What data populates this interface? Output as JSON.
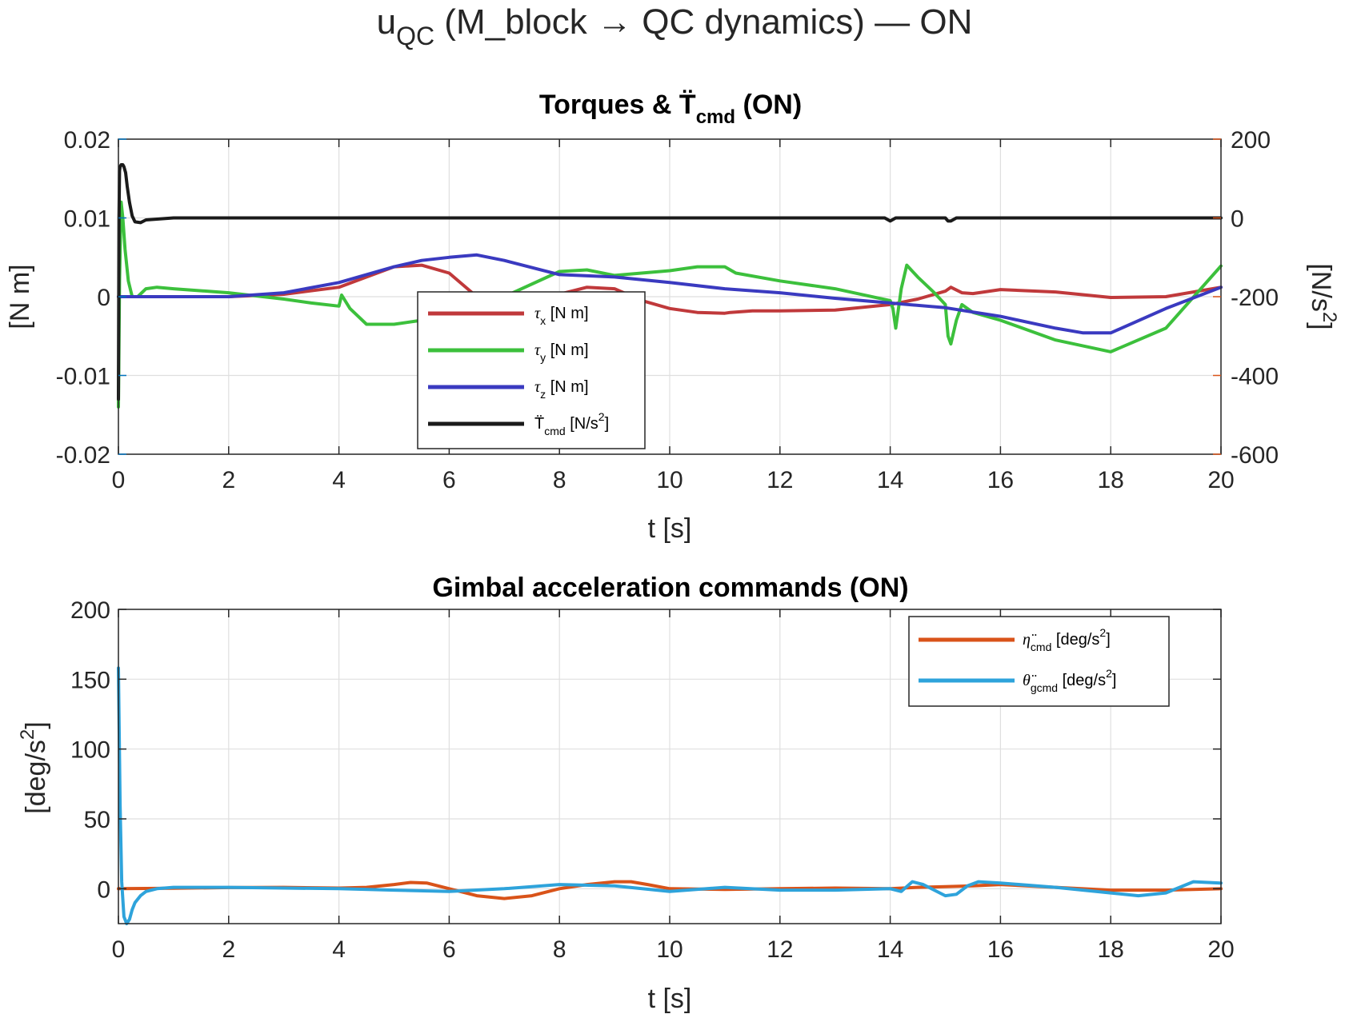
{
  "figure_title": {
    "main": "u",
    "sub": "QC",
    "rest": " (M_block → QC dynamics) — ON"
  },
  "colors": {
    "left_axis": "#0072BD",
    "right_axis": "#D95319",
    "tau_x": "#C0393B",
    "tau_y": "#3CC03C",
    "tau_z": "#3A3AC0",
    "T_cmd": "#1A1A1A",
    "eta": "#D95319",
    "theta": "#2EA3DB"
  },
  "chart_data": [
    {
      "type": "line",
      "title_main": "Torques & T̈",
      "title_sub": "cmd",
      "title_rest": " (ON)",
      "xlabel": "t [s]",
      "ylabel_left": "[N m]",
      "ylabel_right_main": "[N/s",
      "ylabel_right_sup": "2",
      "ylabel_right_end": "]",
      "xlim": [
        0,
        20
      ],
      "ylim_left": [
        -0.02,
        0.02
      ],
      "ylim_right": [
        -600,
        200
      ],
      "xticks": [
        "0",
        "2",
        "4",
        "6",
        "8",
        "10",
        "12",
        "14",
        "16",
        "18",
        "20"
      ],
      "yticks_left": [
        "-0.02",
        "-0.01",
        "0",
        "0.01",
        "0.02"
      ],
      "yticks_right": [
        "-600",
        "-400",
        "-200",
        "0",
        "200"
      ],
      "grid": true,
      "legend_position": "lower-left",
      "legend": [
        {
          "sym": "τ",
          "sub": "x",
          "rest": " [N m]"
        },
        {
          "sym": "τ",
          "sub": "y",
          "rest": " [N m]"
        },
        {
          "sym": "τ",
          "sub": "z",
          "rest": " [N m]"
        },
        {
          "sym": "T̈",
          "sub": "cmd",
          "rest": " [N/s",
          "sup": "2",
          "end": "]"
        }
      ],
      "series": [
        {
          "key": "tau_x",
          "axis": "left",
          "x": [
            0,
            0.5,
            1,
            2,
            3,
            4,
            4.5,
            5,
            5.5,
            6,
            6.5,
            7,
            7.5,
            8,
            8.5,
            9,
            9.5,
            10,
            10.5,
            11,
            11.1,
            11.5,
            12,
            13,
            14,
            14.5,
            15,
            15.1,
            15.3,
            15.5,
            16,
            17,
            18,
            19,
            20
          ],
          "y": [
            0,
            0,
            0,
            0,
            0.0003,
            0.0012,
            0.0025,
            0.0038,
            0.004,
            0.003,
            0,
            -0.0016,
            -0.0015,
            0.0003,
            0.0012,
            0.001,
            -0.0005,
            -0.0015,
            -0.002,
            -0.0021,
            -0.002,
            -0.0018,
            -0.0018,
            -0.0017,
            -0.001,
            -0.0003,
            0.0007,
            0.0012,
            0.0005,
            0.0004,
            0.0009,
            0.0006,
            -0.0001,
            0,
            0.0012
          ]
        },
        {
          "key": "tau_y",
          "axis": "left",
          "x": [
            0,
            0.02,
            0.05,
            0.08,
            0.12,
            0.18,
            0.25,
            0.35,
            0.5,
            0.7,
            1,
            2,
            3,
            3.5,
            4,
            4.05,
            4.2,
            4.5,
            5,
            5.5,
            6,
            7,
            8,
            8.5,
            9,
            10,
            10.5,
            11,
            11.2,
            12,
            13,
            14,
            14.05,
            14.1,
            14.2,
            14.3,
            14.5,
            14.8,
            15,
            15.05,
            15.1,
            15.2,
            15.3,
            15.5,
            16,
            17,
            18,
            19,
            20
          ],
          "y": [
            -0.014,
            0.002,
            0.012,
            0.01,
            0.006,
            0.002,
            0,
            0,
            0.001,
            0.0012,
            0.001,
            0.0005,
            -0.0003,
            -0.0008,
            -0.0012,
            0.0002,
            -0.0015,
            -0.0035,
            -0.0035,
            -0.003,
            -0.0025,
            0,
            0.0032,
            0.0034,
            0.0027,
            0.0033,
            0.0038,
            0.0038,
            0.003,
            0.002,
            0.001,
            -0.0005,
            -0.0015,
            -0.004,
            0.001,
            0.004,
            0.0025,
            0.0005,
            -0.001,
            -0.005,
            -0.006,
            -0.003,
            -0.001,
            -0.002,
            -0.003,
            -0.0055,
            -0.007,
            -0.004,
            0.0039
          ]
        },
        {
          "key": "tau_z",
          "axis": "left",
          "x": [
            0,
            0.5,
            1,
            2,
            3,
            4,
            4.5,
            5,
            5.5,
            6,
            6.5,
            7,
            8,
            9,
            10,
            11,
            12,
            13,
            14,
            15,
            16,
            17,
            17.5,
            18,
            19,
            20
          ],
          "y": [
            0,
            0,
            0,
            0,
            0.0005,
            0.0018,
            0.0028,
            0.0038,
            0.0046,
            0.005,
            0.0053,
            0.0046,
            0.0028,
            0.0025,
            0.0018,
            0.001,
            0.0005,
            -0.0002,
            -0.0008,
            -0.0014,
            -0.0025,
            -0.004,
            -0.0046,
            -0.0046,
            -0.0015,
            0.0012
          ]
        },
        {
          "key": "T_cmd",
          "axis": "right",
          "x": [
            0,
            0.01,
            0.02,
            0.03,
            0.05,
            0.08,
            0.1,
            0.13,
            0.16,
            0.2,
            0.25,
            0.3,
            0.4,
            0.5,
            1,
            2,
            4,
            6,
            8,
            10,
            12,
            13.9,
            14,
            14.1,
            15,
            15.05,
            15.1,
            15.2,
            16,
            18,
            20
          ],
          "y": [
            -460,
            0,
            120,
            130,
            135,
            135,
            130,
            115,
            80,
            40,
            5,
            -10,
            -12,
            -5,
            0,
            0,
            0,
            0,
            0,
            0,
            0,
            0,
            -8,
            0,
            0,
            -8,
            -8,
            0,
            0,
            0,
            0
          ]
        }
      ]
    },
    {
      "type": "line",
      "title": "Gimbal acceleration commands (ON)",
      "xlabel": "t [s]",
      "ylabel_main": "[deg/s",
      "ylabel_sup": "2",
      "ylabel_end": "]",
      "xlim": [
        0,
        20
      ],
      "ylim": [
        -25,
        200
      ],
      "xticks": [
        "0",
        "2",
        "4",
        "6",
        "8",
        "10",
        "12",
        "14",
        "16",
        "18",
        "20"
      ],
      "yticks": [
        "0",
        "50",
        "100",
        "150",
        "200"
      ],
      "grid": true,
      "legend_position": "top-right",
      "legend": [
        {
          "sym": "η̈",
          "sub": "cmd",
          "rest": " [deg/s",
          "sup": "2",
          "end": "]"
        },
        {
          "sym": "θ̈",
          "sub": "gcmd",
          "rest": " [deg/s",
          "sup": "2",
          "end": "]"
        }
      ],
      "series": [
        {
          "key": "eta",
          "x": [
            0,
            1,
            2,
            3,
            4,
            4.5,
            5,
            5.3,
            5.6,
            6,
            6.5,
            7,
            7.5,
            8,
            8.5,
            9,
            9.3,
            9.6,
            10,
            11,
            12,
            13,
            14,
            14.5,
            15,
            15.5,
            16,
            17,
            18,
            19,
            20
          ],
          "y": [
            0,
            0.3,
            0.8,
            1,
            0.5,
            1,
            3,
            4.5,
            4,
            0,
            -5,
            -7,
            -5,
            0,
            3,
            5,
            5,
            3,
            0,
            -0.5,
            0,
            0.5,
            0,
            1,
            1.5,
            2,
            3,
            1,
            -1,
            -1,
            0
          ]
        },
        {
          "key": "theta",
          "x": [
            0,
            0.03,
            0.06,
            0.1,
            0.15,
            0.2,
            0.25,
            0.3,
            0.4,
            0.5,
            0.7,
            1,
            2,
            3,
            4,
            5,
            6,
            7,
            8,
            9,
            10,
            11,
            12,
            13,
            14,
            14.2,
            14.4,
            14.6,
            15,
            15.2,
            15.4,
            15.6,
            16,
            17,
            18,
            18.5,
            19,
            19.5,
            20
          ],
          "y": [
            158,
            60,
            5,
            -20,
            -25,
            -22,
            -15,
            -10,
            -5,
            -2,
            0,
            1,
            1,
            0.5,
            0,
            -1,
            -2,
            0,
            3,
            2,
            -2,
            1,
            -1,
            -1,
            0,
            -2,
            5,
            3,
            -5,
            -4,
            2,
            5,
            4,
            1,
            -3,
            -5,
            -3,
            5,
            4
          ]
        }
      ]
    }
  ]
}
